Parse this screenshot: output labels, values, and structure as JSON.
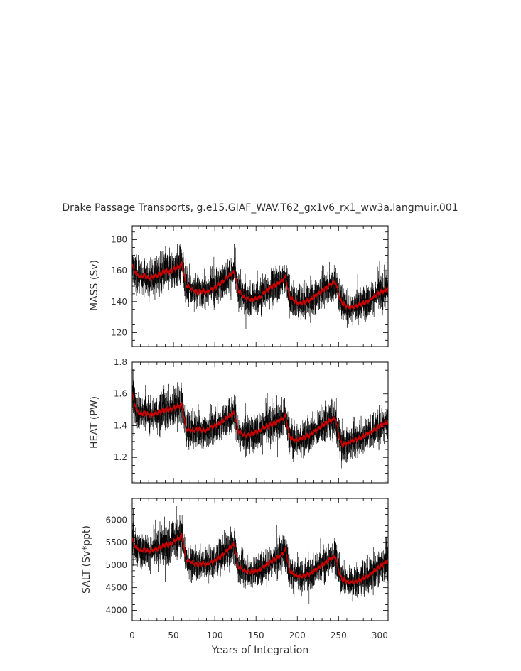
{
  "chart_data": {
    "type": "line",
    "title": "Drake Passage Transports, g.e15.GIAF_WAV.T62_gx1v6_rx1_ww3a.langmuir.001",
    "xlabel": "Years of Integration",
    "xlim": [
      0,
      310
    ],
    "x_ticks": [
      "0",
      "50",
      "100",
      "150",
      "200",
      "250",
      "300"
    ],
    "colors": {
      "raw": "#000000",
      "smoothed": "#cc0000"
    },
    "x": [
      0,
      5,
      10,
      15,
      20,
      25,
      30,
      35,
      40,
      45,
      50,
      55,
      60,
      62,
      65,
      70,
      75,
      80,
      85,
      90,
      95,
      100,
      105,
      110,
      115,
      120,
      124,
      128,
      135,
      140,
      145,
      150,
      155,
      160,
      165,
      170,
      175,
      180,
      186,
      190,
      195,
      200,
      205,
      210,
      215,
      220,
      225,
      230,
      235,
      240,
      246,
      252,
      255,
      260,
      265,
      270,
      275,
      280,
      285,
      290,
      295,
      300,
      305,
      310
    ],
    "panels": [
      {
        "ylabel": "MASS (Sv)",
        "ylim": [
          111,
          189
        ],
        "y_ticks": [
          "120",
          "140",
          "160",
          "180"
        ],
        "smoothed": [
          163,
          158,
          156,
          157,
          155,
          156,
          157,
          158,
          160,
          159,
          161,
          162,
          164,
          160,
          151,
          149,
          147,
          146,
          147,
          146,
          148,
          149,
          151,
          153,
          156,
          158,
          159,
          148,
          143,
          142,
          141,
          142,
          143,
          146,
          148,
          150,
          151,
          153,
          156,
          144,
          141,
          139,
          139,
          140,
          141,
          143,
          145,
          147,
          149,
          151,
          153,
          141,
          139,
          137,
          136,
          137,
          138,
          139,
          140,
          142,
          144,
          146,
          147,
          148
        ],
        "band": [
          11,
          10,
          10,
          10,
          10,
          10,
          11,
          12,
          12,
          13,
          13,
          12,
          11,
          11,
          10,
          10,
          10,
          10,
          11,
          10,
          10,
          10,
          10,
          10,
          10,
          11,
          11,
          10,
          10,
          10,
          10,
          10,
          10,
          11,
          11,
          11,
          11,
          11,
          11,
          11,
          10,
          10,
          10,
          10,
          10,
          10,
          10,
          11,
          11,
          11,
          11,
          10,
          10,
          10,
          10,
          10,
          10,
          10,
          10,
          10,
          10,
          11,
          11,
          11
        ]
      },
      {
        "ylabel": "HEAT (PW)",
        "ylim": [
          1.04,
          1.8
        ],
        "y_ticks": [
          "1.2",
          "1.4",
          "1.6",
          "1.8"
        ],
        "smoothed": [
          1.6,
          1.5,
          1.47,
          1.48,
          1.47,
          1.47,
          1.48,
          1.49,
          1.5,
          1.5,
          1.51,
          1.52,
          1.53,
          1.48,
          1.38,
          1.37,
          1.37,
          1.38,
          1.37,
          1.37,
          1.39,
          1.4,
          1.41,
          1.43,
          1.45,
          1.47,
          1.48,
          1.37,
          1.34,
          1.34,
          1.35,
          1.36,
          1.37,
          1.39,
          1.4,
          1.41,
          1.42,
          1.44,
          1.46,
          1.34,
          1.31,
          1.31,
          1.32,
          1.33,
          1.34,
          1.36,
          1.38,
          1.4,
          1.42,
          1.43,
          1.45,
          1.3,
          1.28,
          1.29,
          1.3,
          1.31,
          1.32,
          1.33,
          1.35,
          1.36,
          1.38,
          1.4,
          1.41,
          1.42
        ],
        "band": [
          0.12,
          0.1,
          0.1,
          0.1,
          0.1,
          0.1,
          0.11,
          0.12,
          0.12,
          0.12,
          0.12,
          0.12,
          0.11,
          0.11,
          0.1,
          0.1,
          0.1,
          0.1,
          0.1,
          0.1,
          0.1,
          0.1,
          0.1,
          0.1,
          0.11,
          0.11,
          0.11,
          0.1,
          0.1,
          0.1,
          0.1,
          0.1,
          0.1,
          0.11,
          0.11,
          0.11,
          0.11,
          0.11,
          0.11,
          0.11,
          0.1,
          0.1,
          0.1,
          0.1,
          0.1,
          0.1,
          0.1,
          0.11,
          0.11,
          0.11,
          0.11,
          0.11,
          0.1,
          0.1,
          0.1,
          0.1,
          0.1,
          0.1,
          0.1,
          0.1,
          0.1,
          0.11,
          0.11,
          0.11
        ]
      },
      {
        "ylabel": "SALT (Sv*ppt)",
        "ylim": [
          3770,
          6480
        ],
        "y_ticks": [
          "4000",
          "4500",
          "5000",
          "5500",
          "6000"
        ],
        "smoothed": [
          5550,
          5380,
          5320,
          5340,
          5310,
          5330,
          5360,
          5400,
          5460,
          5450,
          5520,
          5580,
          5650,
          5500,
          5120,
          5080,
          5030,
          5010,
          5040,
          5010,
          5060,
          5100,
          5160,
          5240,
          5330,
          5420,
          5460,
          4980,
          4880,
          4860,
          4850,
          4870,
          4900,
          4970,
          5040,
          5100,
          5150,
          5220,
          5350,
          4900,
          4800,
          4760,
          4750,
          4780,
          4810,
          4870,
          4930,
          5000,
          5070,
          5130,
          5200,
          4750,
          4690,
          4640,
          4610,
          4630,
          4660,
          4700,
          4750,
          4820,
          4900,
          4970,
          5040,
          5100
        ],
        "band": [
          380,
          340,
          330,
          330,
          330,
          340,
          360,
          390,
          410,
          420,
          430,
          410,
          390,
          380,
          340,
          330,
          330,
          330,
          340,
          330,
          330,
          340,
          340,
          350,
          360,
          370,
          380,
          340,
          330,
          320,
          320,
          330,
          330,
          340,
          350,
          360,
          360,
          370,
          380,
          360,
          330,
          320,
          320,
          320,
          330,
          330,
          340,
          350,
          360,
          370,
          380,
          350,
          330,
          320,
          320,
          320,
          330,
          330,
          330,
          340,
          350,
          360,
          370,
          380
        ]
      }
    ]
  }
}
